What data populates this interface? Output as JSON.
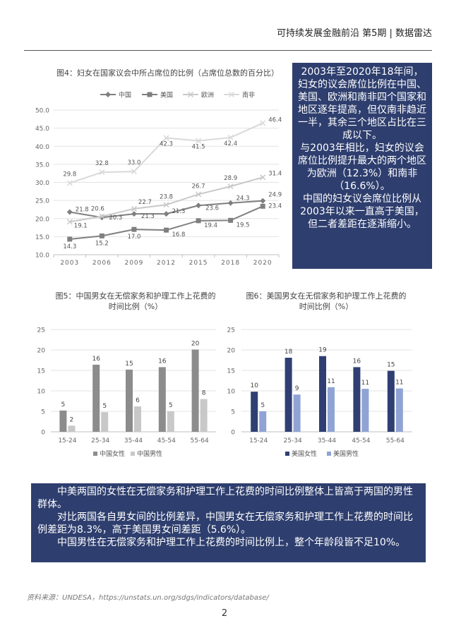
{
  "header": "可持续发展金融前沿 第5期 | 数据雷达",
  "right_box": {
    "paragraphs": [
      "2003年至2020年18年间，妇女的议会席位比例在中国、美国、欧洲和南非四个国家和地区逐年提高，但仅南非趋近一半，其余三个地区占比在三成以下。",
      "与2003年相比，妇女的议会席位比例提升最大的两个地区为欧洲（12.3%）和南非（16.6%）。",
      "中国的妇女议会席位比例从2003年以来一直高于美国，但二者差距在逐渐缩小。"
    ]
  },
  "bottom_box": {
    "paragraphs": [
      "中美两国的女性在无偿家务和护理工作上花费的时间比例整体上皆高于两国的男性群体。",
      "对比两国各自男女间的比例差异，中国男女在无偿家务和护理工作上花费的时间比例差距为8.3%，高于美国男女间差距（5.6%）。",
      "中国男性在无偿家务和护理工作上花费的时间比例上，整个年龄段皆不足10%。"
    ]
  },
  "source": "资料来源：UNDESA，https://unstats.un.org/sdgs/indicators/database/",
  "page_number": "2",
  "chart_data": [
    {
      "type": "line",
      "title": "图4：妇女在国家议会中所占席位的比例（占席位总数的百分比）",
      "x": [
        "2003",
        "2006",
        "2009",
        "2012",
        "2015",
        "2018",
        "2020"
      ],
      "ylim": [
        10,
        50
      ],
      "yticks": [
        "10.0",
        "15.0",
        "20.0",
        "25.0",
        "30.0",
        "35.0",
        "40.0",
        "45.0",
        "50.0"
      ],
      "legend_position": "top",
      "series": [
        {
          "name": "中国",
          "color": "#7f7f7f",
          "marker": "diamond",
          "values": [
            21.8,
            20.3,
            21.3,
            21.3,
            23.6,
            24.3,
            24.9
          ],
          "labels": [
            "21.8",
            "20.3",
            "21.3",
            "21.3",
            "23.6",
            "24.3",
            "24.9"
          ]
        },
        {
          "name": "美国",
          "color": "#7f7f7f",
          "marker": "square",
          "values": [
            14.3,
            15.2,
            17.0,
            16.8,
            19.4,
            19.5,
            23.4
          ],
          "labels": [
            "14.3",
            "15.2",
            "17.0",
            "16.8",
            "19.4",
            "19.5",
            "23.4"
          ]
        },
        {
          "name": "欧洲",
          "color": "#c9c9c9",
          "marker": "x",
          "values": [
            19.1,
            20.6,
            22.7,
            23.8,
            26.7,
            28.9,
            31.4
          ],
          "labels": [
            "19.1",
            "20.6",
            "22.7",
            "23.8",
            "26.7",
            "28.9",
            "31.4"
          ]
        },
        {
          "name": "南非",
          "color": "#d9d9d9",
          "marker": "x",
          "values": [
            29.8,
            32.8,
            33.0,
            42.3,
            41.5,
            42.4,
            46.4
          ],
          "labels": [
            "29.8",
            "32.8",
            "33.0",
            "42.3",
            "41.5",
            "42.4",
            "46.4"
          ]
        }
      ]
    },
    {
      "type": "bar",
      "title": "图5：中国男女在无偿家务和护理工作上花费的时间比例（%）",
      "categories": [
        "15-24",
        "25-34",
        "35-44",
        "45-54",
        "55-64"
      ],
      "ylim": [
        0,
        25
      ],
      "yticks": [
        "0",
        "5",
        "10",
        "15",
        "20",
        "25"
      ],
      "series": [
        {
          "name": "中国女性",
          "color": "#8c8c8c",
          "values": [
            5.2,
            16.4,
            15.2,
            15.8,
            20.1
          ],
          "labels": [
            "5",
            "16",
            "15",
            "16",
            "20"
          ]
        },
        {
          "name": "中国男性",
          "color": "#c8c8c8",
          "values": [
            1.5,
            4.8,
            6.2,
            5.0,
            8.0
          ],
          "labels": [
            "2",
            "5",
            "6",
            "5",
            "8"
          ]
        }
      ]
    },
    {
      "type": "bar",
      "title": "图6：美国男女在无偿家务和护理工作上花费的时间比例（%）",
      "categories": [
        "15-24",
        "25-34",
        "35-44",
        "45-54",
        "55-64"
      ],
      "ylim": [
        0,
        25
      ],
      "yticks": [
        "0",
        "5",
        "10",
        "15",
        "20",
        "25"
      ],
      "series": [
        {
          "name": "美国女性",
          "color": "#2f3f73",
          "values": [
            9.8,
            18.1,
            18.5,
            15.8,
            14.9
          ],
          "labels": [
            "10",
            "18",
            "19",
            "16",
            "15"
          ]
        },
        {
          "name": "美国男性",
          "color": "#8fa3d4",
          "values": [
            5.0,
            9.1,
            10.9,
            10.5,
            10.6
          ],
          "labels": [
            "5",
            "9",
            "11",
            "11",
            "11"
          ]
        }
      ]
    }
  ]
}
